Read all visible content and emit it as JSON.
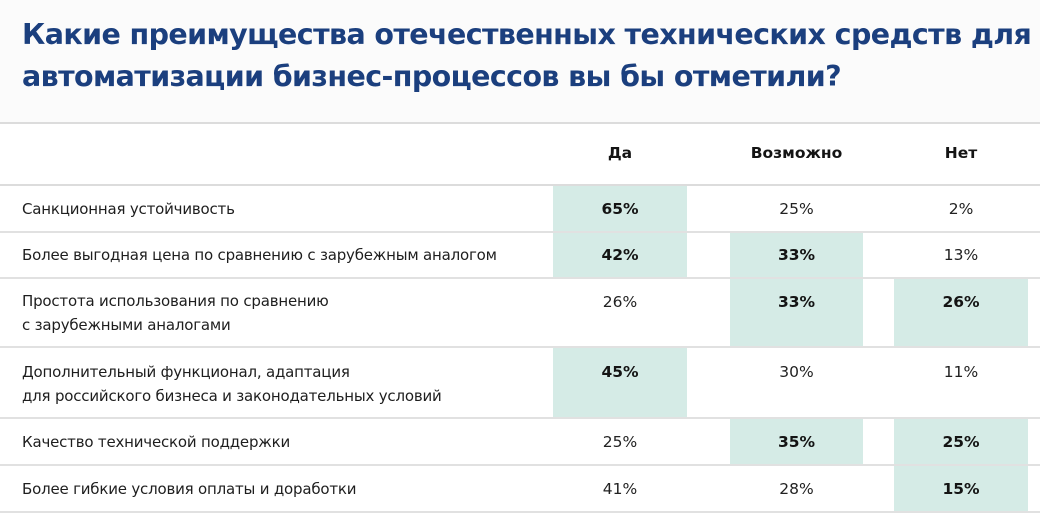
{
  "title": {
    "line1": "Какие преимущества отечественных технических средств для",
    "line2": "автоматизации бизнес-процессов вы бы отметили?"
  },
  "columns": [
    "Да",
    "Возможно",
    "Нет"
  ],
  "colors": {
    "title": "#1b3f7e",
    "highlight": "#d5ebe6",
    "separator": "#dcdcdc"
  },
  "rows": [
    {
      "label_lines": [
        "Санкционная устойчивость"
      ],
      "values": [
        "65%",
        "25%",
        "2%"
      ],
      "highlight": [
        true,
        false,
        false
      ]
    },
    {
      "label_lines": [
        "Более выгодная цена по сравнению с зарубежным аналогом"
      ],
      "values": [
        "42%",
        "33%",
        "13%"
      ],
      "highlight": [
        true,
        true,
        false
      ]
    },
    {
      "label_lines": [
        "Простота использования по сравнению",
        "с зарубежными аналогами"
      ],
      "values": [
        "26%",
        "33%",
        "26%"
      ],
      "highlight": [
        false,
        true,
        true
      ]
    },
    {
      "label_lines": [
        "Дополнительный функционал, адаптация",
        "для российского бизнеса и законодательных условий"
      ],
      "values": [
        "45%",
        "30%",
        "11%"
      ],
      "highlight": [
        true,
        false,
        false
      ]
    },
    {
      "label_lines": [
        "Качество технической поддержки"
      ],
      "values": [
        "25%",
        "35%",
        "25%"
      ],
      "highlight": [
        false,
        true,
        true
      ]
    },
    {
      "label_lines": [
        "Более гибкие условия оплаты и доработки"
      ],
      "values": [
        "41%",
        "28%",
        "15%"
      ],
      "highlight": [
        false,
        false,
        true
      ]
    }
  ],
  "chart_data": {
    "type": "table",
    "title": "Какие преимущества отечественных технических средств для автоматизации бизнес-процессов вы бы отметили?",
    "columns": [
      "Да",
      "Возможно",
      "Нет"
    ],
    "categories": [
      "Санкционная устойчивость",
      "Более выгодная цена по сравнению с зарубежным аналогом",
      "Простота использования по сравнению с зарубежными аналогами",
      "Дополнительный функционал, адаптация для российского бизнеса и законодательных условий",
      "Качество технической поддержки",
      "Более гибкие условия оплаты и доработки"
    ],
    "series": [
      {
        "name": "Да",
        "values": [
          65,
          42,
          26,
          45,
          25,
          41
        ]
      },
      {
        "name": "Возможно",
        "values": [
          25,
          33,
          33,
          30,
          35,
          28
        ]
      },
      {
        "name": "Нет",
        "values": [
          2,
          13,
          26,
          11,
          25,
          15
        ]
      }
    ],
    "unit": "%",
    "highlighted_cells": [
      [
        true,
        false,
        false
      ],
      [
        true,
        true,
        false
      ],
      [
        false,
        true,
        true
      ],
      [
        true,
        false,
        false
      ],
      [
        false,
        true,
        true
      ],
      [
        false,
        false,
        true
      ]
    ]
  }
}
